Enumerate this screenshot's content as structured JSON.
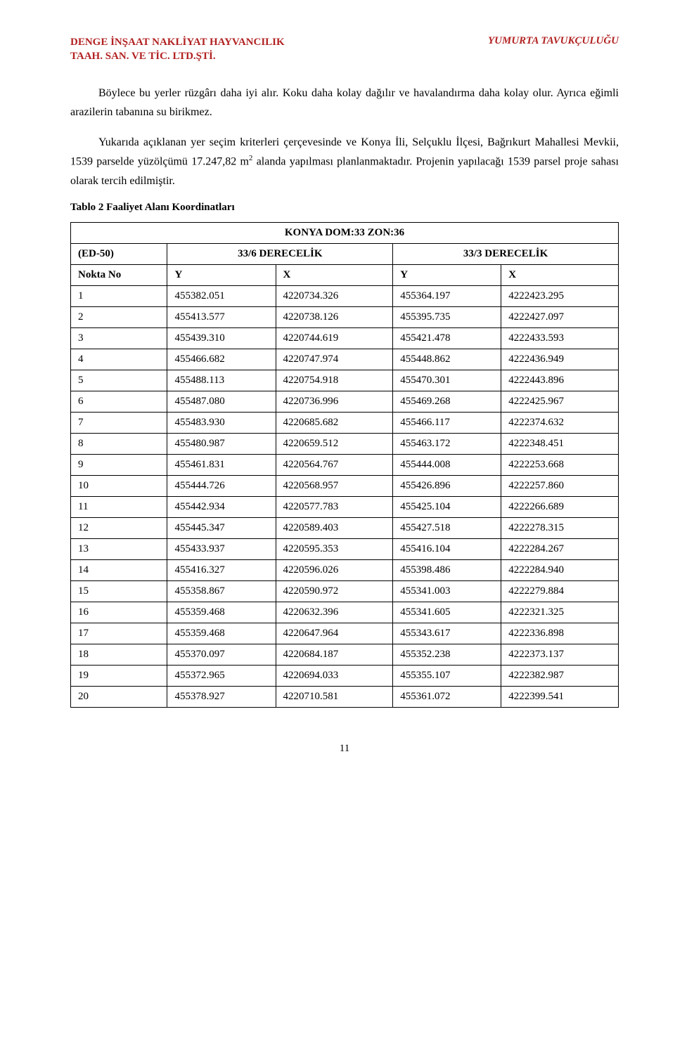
{
  "header": {
    "left_line1": "DENGE İNŞAAT NAKLİYAT HAYVANCILIK",
    "left_line2": "TAAH. SAN. VE TİC. LTD.ŞTİ.",
    "right": "YUMURTA TAVUKÇULUĞU"
  },
  "paragraphs": {
    "p1": "Böylece bu yerler rüzgârı daha iyi alır. Koku daha kolay dağılır ve havalandırma daha kolay olur. Ayrıca eğimli arazilerin tabanına su birikmez.",
    "p2a": "Yukarıda açıklanan yer seçim kriterleri çerçevesinde ve Konya İli, Selçuklu İlçesi, Bağrıkurt Mahallesi Mevkii, 1539 parselde yüzölçümü 17.247,82 m",
    "p2b": " alanda yapılması planlanmaktadır. Projenin yapılacağı 1539 parsel proje sahası olarak tercih edilmiştir.",
    "p2_sup": "2"
  },
  "tableCaption": "Tablo 2 Faaliyet Alanı Koordinatları",
  "table": {
    "mergedTitle": "KONYA DOM:33 ZON:36",
    "groupRow": {
      "c1": "(ED-50)",
      "c2": "33/6 DERECELİK",
      "c3": "33/3 DERECELİK"
    },
    "colRow": {
      "c1": "Nokta No",
      "c2": "Y",
      "c3": "X",
      "c4": "Y",
      "c5": "X"
    },
    "rows": [
      [
        "1",
        "455382.051",
        "4220734.326",
        "455364.197",
        "4222423.295"
      ],
      [
        "2",
        "455413.577",
        "4220738.126",
        "455395.735",
        "4222427.097"
      ],
      [
        "3",
        "455439.310",
        "4220744.619",
        "455421.478",
        "4222433.593"
      ],
      [
        "4",
        "455466.682",
        "4220747.974",
        "455448.862",
        "4222436.949"
      ],
      [
        "5",
        "455488.113",
        "4220754.918",
        "455470.301",
        "4222443.896"
      ],
      [
        "6",
        "455487.080",
        "4220736.996",
        "455469.268",
        "4222425.967"
      ],
      [
        "7",
        "455483.930",
        "4220685.682",
        "455466.117",
        "4222374.632"
      ],
      [
        "8",
        "455480.987",
        "4220659.512",
        "455463.172",
        "4222348.451"
      ],
      [
        "9",
        "455461.831",
        "4220564.767",
        "455444.008",
        "4222253.668"
      ],
      [
        "10",
        "455444.726",
        "4220568.957",
        "455426.896",
        "4222257.860"
      ],
      [
        "11",
        "455442.934",
        "4220577.783",
        "455425.104",
        "4222266.689"
      ],
      [
        "12",
        "455445.347",
        "4220589.403",
        "455427.518",
        "4222278.315"
      ],
      [
        "13",
        "455433.937",
        "4220595.353",
        "455416.104",
        "4222284.267"
      ],
      [
        "14",
        "455416.327",
        "4220596.026",
        "455398.486",
        "4222284.940"
      ],
      [
        "15",
        "455358.867",
        "4220590.972",
        "455341.003",
        "4222279.884"
      ],
      [
        "16",
        "455359.468",
        "4220632.396",
        "455341.605",
        "4222321.325"
      ],
      [
        "17",
        "455359.468",
        "4220647.964",
        "455343.617",
        "4222336.898"
      ],
      [
        "18",
        "455370.097",
        "4220684.187",
        "455352.238",
        "4222373.137"
      ],
      [
        "19",
        "455372.965",
        "4220694.033",
        "455355.107",
        "4222382.987"
      ],
      [
        "20",
        "455378.927",
        "4220710.581",
        "455361.072",
        "4222399.541"
      ]
    ]
  },
  "pageNumber": "11"
}
